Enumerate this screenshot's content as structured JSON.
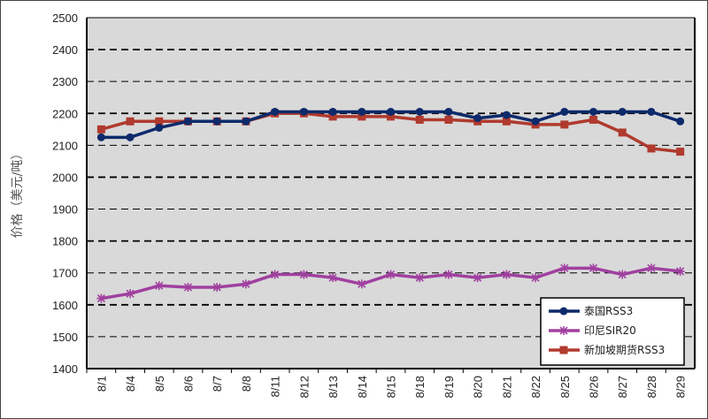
{
  "chart_data": {
    "type": "line",
    "title": "",
    "xlabel": "",
    "ylabel": "价格（美元/吨）",
    "ylim": [
      1400,
      2500
    ],
    "yticks": [
      1400,
      1500,
      1600,
      1700,
      1800,
      1900,
      2000,
      2100,
      2200,
      2300,
      2400,
      2500
    ],
    "grid": true,
    "legend_position": "bottom-right",
    "categories": [
      "8/1",
      "8/4",
      "8/5",
      "8/6",
      "8/7",
      "8/8",
      "8/11",
      "8/12",
      "8/13",
      "8/14",
      "8/15",
      "8/18",
      "8/19",
      "8/20",
      "8/21",
      "8/22",
      "8/25",
      "8/26",
      "8/27",
      "8/28",
      "8/29"
    ],
    "series": [
      {
        "name": "泰国RSS3",
        "color": "#0d2a6b",
        "marker": "circle",
        "values": [
          2125,
          2125,
          2155,
          2175,
          2175,
          2175,
          2205,
          2205,
          2205,
          2205,
          2205,
          2205,
          2205,
          2185,
          2195,
          2175,
          2205,
          2205,
          2205,
          2205,
          2175
        ]
      },
      {
        "name": "印尼SIR20",
        "color": "#a040a0",
        "marker": "star",
        "values": [
          1620,
          1635,
          1660,
          1655,
          1655,
          1665,
          1695,
          1695,
          1685,
          1665,
          1695,
          1685,
          1695,
          1685,
          1695,
          1685,
          1715,
          1715,
          1695,
          1715,
          1705
        ]
      },
      {
        "name": "新加坡期货RSS3",
        "color": "#b03a2e",
        "marker": "square",
        "values": [
          2150,
          2175,
          2175,
          2175,
          2175,
          2175,
          2200,
          2200,
          2190,
          2190,
          2190,
          2180,
          2180,
          2175,
          2175,
          2165,
          2165,
          2180,
          2140,
          2090,
          2080
        ]
      }
    ]
  }
}
